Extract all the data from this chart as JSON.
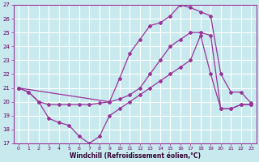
{
  "bg_color": "#c8eaee",
  "line_color": "#993399",
  "grid_color": "#aadddd",
  "xlim_min": -0.5,
  "xlim_max": 23.5,
  "ylim_min": 17,
  "ylim_max": 27,
  "yticks": [
    17,
    18,
    19,
    20,
    21,
    22,
    23,
    24,
    25,
    26,
    27
  ],
  "xticks": [
    0,
    1,
    2,
    3,
    4,
    5,
    6,
    7,
    8,
    9,
    10,
    11,
    12,
    13,
    14,
    15,
    16,
    17,
    18,
    19,
    20,
    21,
    22,
    23
  ],
  "xlabel": "Windchill (Refroidissement éolien,°C)",
  "line1_x": [
    0,
    1,
    2,
    3,
    4,
    5,
    6,
    7,
    8,
    9,
    10,
    11,
    12,
    13,
    14,
    15,
    16,
    17,
    18,
    19,
    20,
    21,
    22,
    23
  ],
  "line1_y": [
    21.0,
    20.7,
    20.0,
    19.8,
    19.8,
    19.8,
    19.8,
    19.8,
    19.9,
    20.0,
    20.2,
    20.5,
    21.0,
    22.0,
    23.0,
    24.0,
    24.5,
    25.0,
    25.0,
    24.8,
    19.5,
    19.5,
    19.8,
    19.8
  ],
  "line2_x": [
    0,
    9,
    10,
    11,
    12,
    13,
    14,
    15,
    16,
    17,
    18,
    19,
    20,
    21,
    22,
    23
  ],
  "line2_y": [
    21.0,
    20.0,
    21.7,
    23.5,
    24.5,
    25.5,
    25.7,
    26.2,
    27.0,
    26.8,
    26.5,
    26.2,
    22.0,
    20.7,
    20.7,
    19.9
  ],
  "line3_x": [
    0,
    1,
    2,
    3,
    4,
    5,
    6,
    7,
    8,
    9,
    10,
    11,
    12,
    13,
    14,
    15,
    16,
    17,
    18,
    19,
    20,
    21,
    22,
    23
  ],
  "line3_y": [
    21.0,
    20.7,
    20.0,
    18.8,
    18.5,
    18.3,
    17.5,
    17.0,
    17.5,
    19.0,
    19.5,
    20.0,
    20.5,
    21.0,
    21.5,
    22.0,
    22.5,
    23.0,
    24.8,
    22.0,
    19.5,
    19.5,
    19.8,
    19.8
  ]
}
